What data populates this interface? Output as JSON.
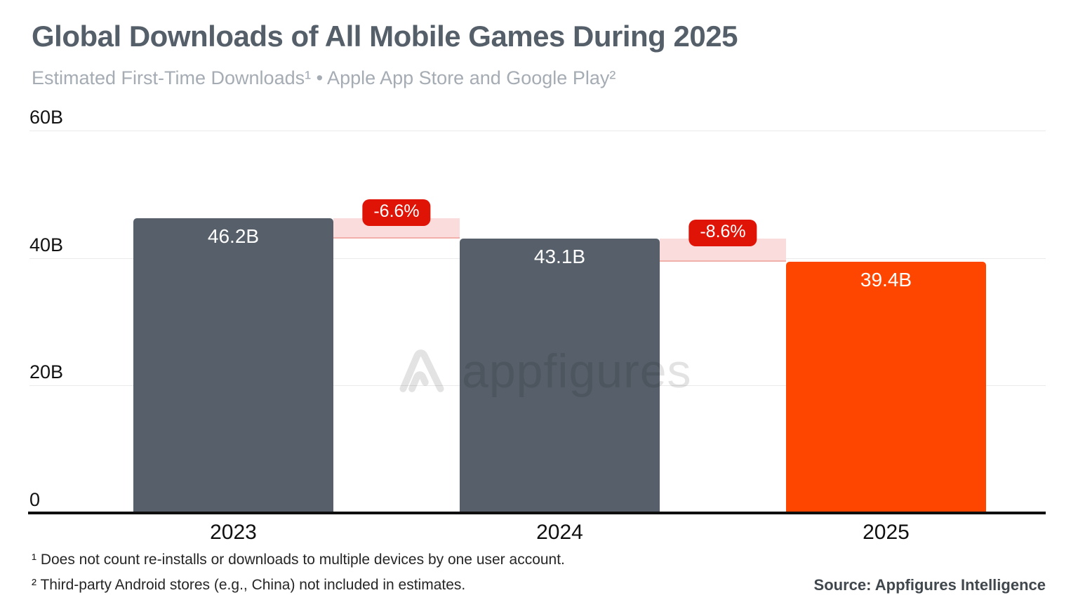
{
  "header": {
    "title": "Global Downloads of All Mobile Games During 2025",
    "subtitle": "Estimated First-Time Downloads¹ • Apple App Store and Google Play²"
  },
  "watermark": {
    "brand": "appfigures",
    "logo_icon": "appfigures-logo"
  },
  "chart_data": {
    "type": "bar",
    "title": "Global Downloads of All Mobile Games During 2025",
    "subtitle": "Estimated First-Time Downloads • Apple App Store and Google Play",
    "unit": "first-time downloads, billions",
    "categories": [
      "2023",
      "2024",
      "2025"
    ],
    "values": [
      46.2,
      43.1,
      39.4
    ],
    "value_labels": [
      "46.2B",
      "43.1B",
      "39.4B"
    ],
    "bar_colors": [
      "#565f6a",
      "#565f6a",
      "#fe4601"
    ],
    "deltas": [
      {
        "from": "2023",
        "to": "2024",
        "label": "-6.6%",
        "value_pct": -6.6
      },
      {
        "from": "2024",
        "to": "2025",
        "label": "-8.6%",
        "value_pct": -8.6
      }
    ],
    "y_axis": {
      "max": 60,
      "ticks": [
        {
          "label": "0",
          "value": 0
        },
        {
          "label": "20B",
          "value": 20
        },
        {
          "label": "40B",
          "value": 40
        },
        {
          "label": "60B",
          "value": 60
        }
      ]
    },
    "ylim": [
      0,
      60
    ],
    "grid": true,
    "legend": false
  },
  "footer": {
    "footnotes": [
      "¹ Does not count re-installs or downloads to multiple devices by one user account.",
      "² Third-party Android stores (e.g., China) not included in estimates."
    ],
    "source": "Source: Appfigures Intelligence"
  },
  "colors": {
    "bar_gray": "#565f6a",
    "bar_orange": "#fe4601",
    "badge_red": "#e01307",
    "delta_band_pink": "#fbdcdc",
    "delta_band_edge": "#f2b0ab",
    "title": "#555f6a",
    "subtitle": "#a5acb4",
    "gridline": "#eaeaea",
    "axis_line": "#0f0f0f",
    "watermark": "#e3e3e3"
  }
}
